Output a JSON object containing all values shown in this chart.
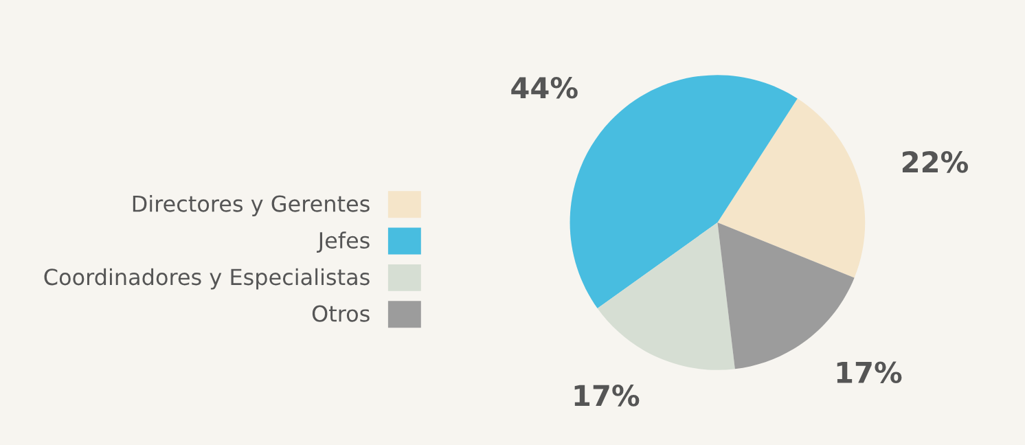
{
  "chart_data": {
    "type": "pie",
    "categories": [
      "Directores y Gerentes",
      "Jefes",
      "Coordinadores y Especialistas",
      "Otros"
    ],
    "values": [
      22,
      44,
      17,
      17
    ],
    "colors": [
      "#f5e5c9",
      "#48bde0",
      "#d6ded3",
      "#9c9c9c"
    ],
    "value_labels": [
      "22%",
      "44%",
      "17%",
      "17%"
    ],
    "legend": "left"
  }
}
